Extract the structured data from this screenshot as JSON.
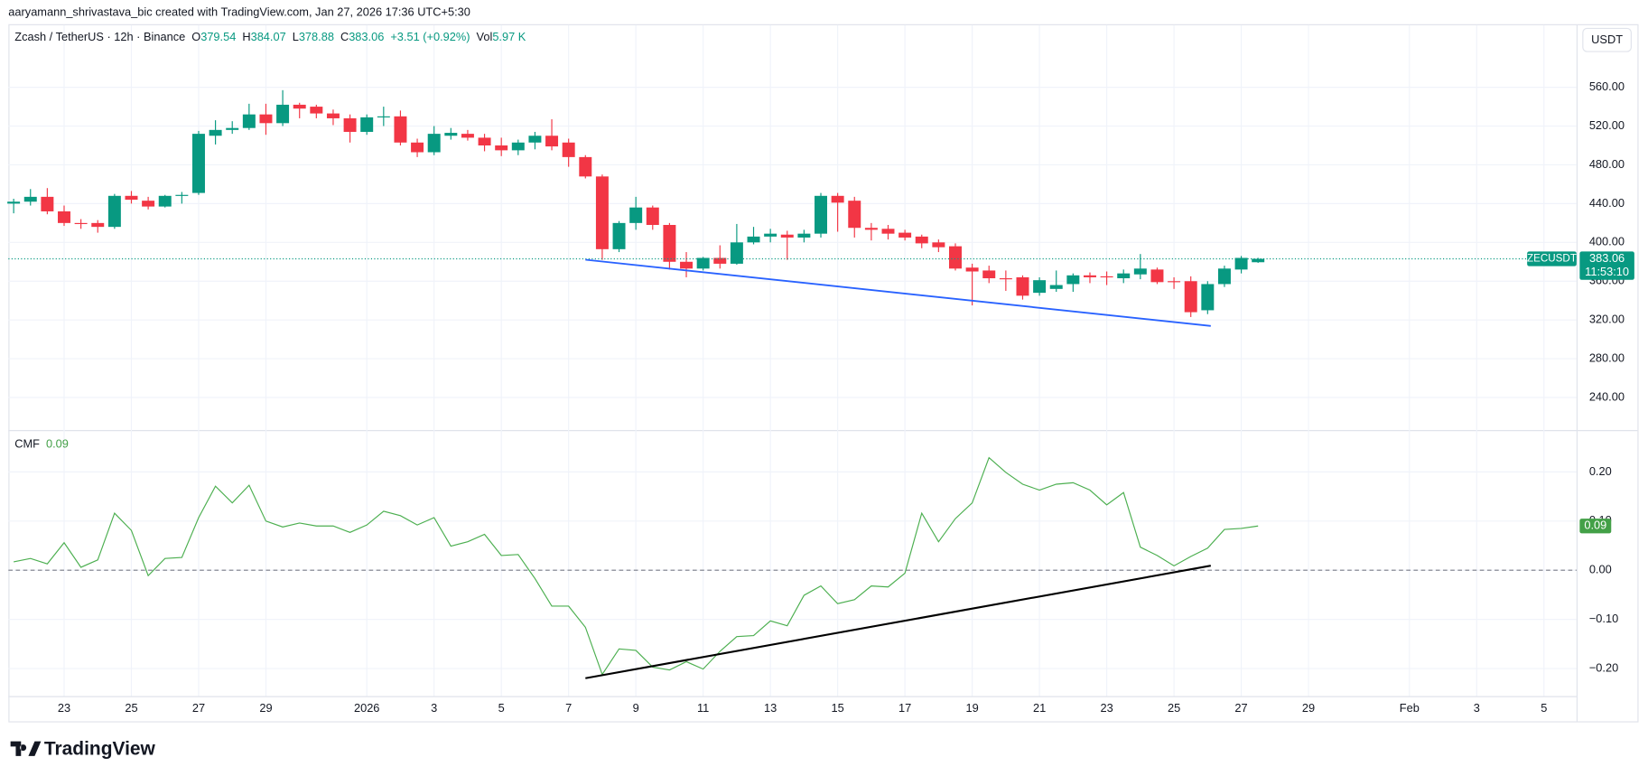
{
  "header": {
    "text": "aaryamann_shrivastava_bic created with TradingView.com, Jan 27, 2026 17:36 UTC+5:30"
  },
  "chart_data": [
    {
      "type": "candlestick",
      "title": "Zcash / TetherUS · 12h · Binance",
      "ohlc_labels": [
        "O",
        "H",
        "L",
        "C"
      ],
      "change": "+3.51 (+0.92%)",
      "volume_label": "Vol",
      "volume": "5.97 K",
      "currency": "USDT",
      "symbol": "ZECUSDT",
      "countdown": "11:53:10",
      "price_line": true,
      "up_color": "#089981",
      "down_color": "#f23645",
      "open": [
        440,
        442,
        447,
        432,
        420,
        420,
        416,
        448,
        443,
        437,
        448,
        451,
        510,
        516,
        518,
        532,
        523,
        542,
        540,
        533,
        528,
        514,
        529,
        530,
        503,
        493,
        510,
        512,
        508,
        500,
        495,
        503,
        510,
        503,
        488,
        468,
        393,
        420,
        436,
        418,
        380,
        373,
        384,
        378,
        400,
        406,
        408,
        405,
        409,
        448,
        443,
        415,
        414,
        410,
        406,
        400,
        396,
        374,
        371,
        363,
        364,
        348,
        352,
        357,
        366,
        365,
        363,
        367,
        372,
        360,
        360,
        330,
        357,
        372,
        379.54
      ],
      "high": [
        445,
        455,
        456,
        438,
        424,
        423,
        450,
        453,
        447,
        449,
        452,
        515,
        526,
        525,
        543,
        543,
        557,
        544,
        542,
        537,
        532,
        532,
        540,
        536,
        507,
        520,
        518,
        516,
        512,
        508,
        506,
        514,
        527,
        507,
        490,
        470,
        422,
        447,
        438,
        420,
        390,
        385,
        397,
        419,
        416,
        414,
        412,
        413,
        451,
        451,
        447,
        420,
        418,
        413,
        408,
        403,
        399,
        378,
        376,
        371,
        366,
        364,
        371,
        368,
        369,
        370,
        372,
        388,
        374,
        364,
        365,
        360,
        376,
        386,
        384.07
      ],
      "low": [
        430,
        438,
        429,
        417,
        414,
        410,
        414,
        440,
        434,
        436,
        440,
        449,
        501,
        512,
        516,
        511,
        520,
        528,
        528,
        521,
        503,
        511,
        520,
        500,
        488,
        490,
        506,
        505,
        494,
        489,
        490,
        496,
        495,
        478,
        466,
        382,
        390,
        413,
        413,
        372,
        364,
        371,
        373,
        377,
        398,
        400,
        382,
        400,
        405,
        411,
        405,
        402,
        403,
        402,
        394,
        390,
        371,
        335,
        358,
        350,
        341,
        345,
        349,
        349,
        358,
        356,
        358,
        362,
        357,
        352,
        323,
        326,
        354,
        368,
        378.88
      ],
      "close": [
        442,
        447,
        432,
        420,
        419,
        416,
        448,
        444,
        437,
        448,
        449,
        512,
        516,
        518,
        532,
        523,
        542,
        538,
        533,
        528,
        514,
        529,
        530,
        503,
        493,
        512,
        513,
        508,
        500,
        495,
        503,
        510,
        499,
        488,
        468,
        393,
        420,
        436,
        418,
        380,
        373,
        384,
        378,
        400,
        406,
        409,
        405,
        409,
        448,
        441,
        415,
        413,
        409,
        405,
        399,
        395,
        373,
        370,
        363,
        362,
        345,
        361,
        356,
        366,
        364,
        364,
        368,
        373,
        359,
        359,
        328,
        357,
        373,
        384,
        383.06
      ],
      "xlim": [
        -0.3125,
        92.9375
      ],
      "ylim": [
        207.5,
        624.0
      ],
      "yticks": [
        {
          "value": 240,
          "label": "240.00"
        },
        {
          "value": 280,
          "label": "280.00"
        },
        {
          "value": 320,
          "label": "320.00"
        },
        {
          "value": 360,
          "label": "360.00"
        },
        {
          "value": 400,
          "label": "400.00"
        },
        {
          "value": 440,
          "label": "440.00"
        },
        {
          "value": 480,
          "label": "480.00"
        },
        {
          "value": 520,
          "label": "520.00"
        },
        {
          "value": 560,
          "label": "560.00"
        }
      ],
      "grid": true
    },
    {
      "type": "line",
      "title": "CMF",
      "color": "#4caf50",
      "badge_color": "#43a047",
      "values": [
        0.017,
        0.024,
        0.013,
        0.056,
        0.006,
        0.021,
        0.116,
        0.081,
        -0.011,
        0.024,
        0.026,
        0.107,
        0.171,
        0.137,
        0.173,
        0.1,
        0.088,
        0.096,
        0.09,
        0.09,
        0.077,
        0.092,
        0.12,
        0.111,
        0.092,
        0.107,
        0.049,
        0.058,
        0.073,
        0.03,
        0.032,
        -0.017,
        -0.073,
        -0.073,
        -0.116,
        -0.212,
        -0.16,
        -0.163,
        -0.197,
        -0.203,
        -0.186,
        -0.201,
        -0.165,
        -0.135,
        -0.133,
        -0.103,
        -0.113,
        -0.051,
        -0.032,
        -0.068,
        -0.06,
        -0.032,
        -0.034,
        -0.006,
        0.116,
        0.058,
        0.105,
        0.137,
        0.229,
        0.199,
        0.175,
        0.163,
        0.175,
        0.178,
        0.163,
        0.133,
        0.158,
        0.047,
        0.03,
        0.009,
        0.028,
        0.045,
        0.083,
        0.085,
        0.09
      ],
      "xlim": [
        -0.3125,
        92.9375
      ],
      "xticks": [
        {
          "value": 3,
          "label": "23"
        },
        {
          "value": 7,
          "label": "25"
        },
        {
          "value": 11,
          "label": "27"
        },
        {
          "value": 15,
          "label": "29"
        },
        {
          "value": 21,
          "label": "2026"
        },
        {
          "value": 25,
          "label": "3"
        },
        {
          "value": 29,
          "label": "5"
        },
        {
          "value": 33,
          "label": "7"
        },
        {
          "value": 37,
          "label": "9"
        },
        {
          "value": 41,
          "label": "11"
        },
        {
          "value": 45,
          "label": "13"
        },
        {
          "value": 49,
          "label": "15"
        },
        {
          "value": 53,
          "label": "17"
        },
        {
          "value": 57,
          "label": "19"
        },
        {
          "value": 61,
          "label": "21"
        },
        {
          "value": 65,
          "label": "23"
        },
        {
          "value": 69,
          "label": "25"
        },
        {
          "value": 73,
          "label": "27"
        },
        {
          "value": 77,
          "label": "29"
        },
        {
          "value": 83,
          "label": "Feb"
        },
        {
          "value": 87,
          "label": "3"
        },
        {
          "value": 91,
          "label": "5"
        }
      ],
      "ylim": [
        -0.256,
        0.283
      ],
      "yticks": [
        {
          "value": -0.2,
          "label": "−0.20"
        },
        {
          "value": -0.1,
          "label": "−0.10"
        },
        {
          "value": 0,
          "label": "0.00"
        },
        {
          "value": 0.1,
          "label": "0.10"
        },
        {
          "value": 0.2,
          "label": "0.20"
        }
      ],
      "zero_line": true,
      "grid": true
    }
  ],
  "brand": "TradingView"
}
